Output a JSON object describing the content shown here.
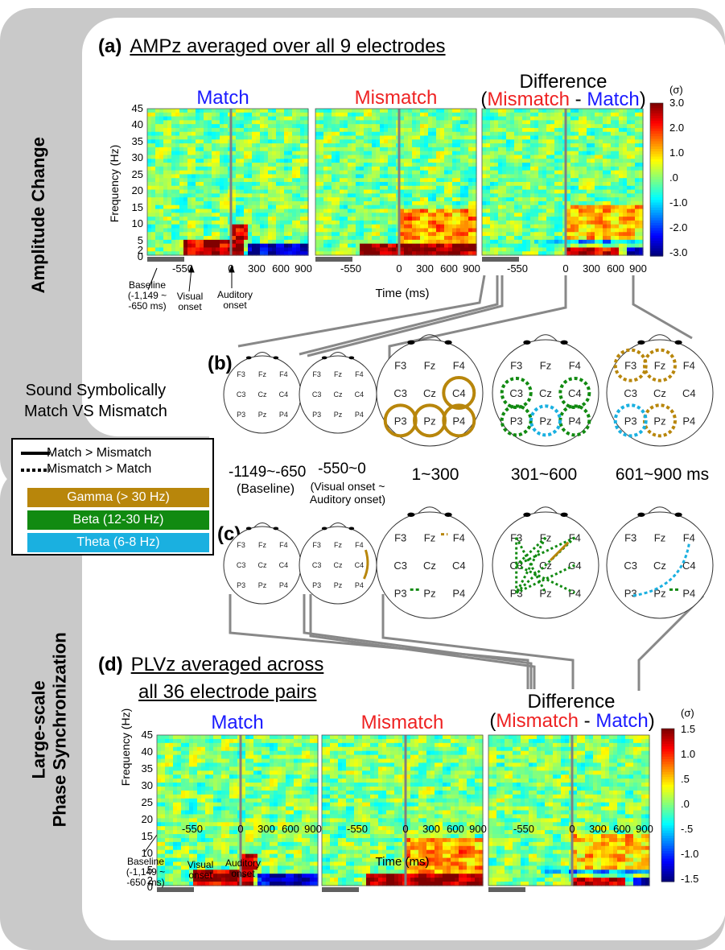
{
  "row_labels": {
    "amplitude": "Amplitude Change",
    "phase_line1": "Large-scale",
    "phase_line2": "Phase Synchronization"
  },
  "panel_a": {
    "letter": "(a)",
    "title": "AMPz averaged over all 9 electrodes"
  },
  "panel_b": {
    "letter": "(b)"
  },
  "panel_c": {
    "letter": "(c)"
  },
  "panel_d": {
    "letter": "(d)",
    "title_line1": "PLVz averaged across",
    "title_line2": "all 36 electrode pairs"
  },
  "plot_titles": {
    "match": "Match",
    "mismatch": "Mismatch",
    "difference": "Difference",
    "paren_open": "(",
    "diff_mismatch": "Mismatch",
    "dash": " - ",
    "diff_match": "Match",
    "paren_close": ")"
  },
  "axes": {
    "ylabel": "Frequency (Hz)",
    "xlabel": "Time (ms)",
    "y_ticks": [
      "45",
      "40",
      "35",
      "30",
      "25",
      "20",
      "15",
      "10",
      "5",
      "2",
      "0"
    ],
    "x_ticks": [
      "-550",
      "0",
      "300",
      "600",
      "900"
    ],
    "colorbar_unit": "(σ)",
    "colorbar_a": [
      "3.0",
      "2.0",
      "1.0",
      ".0",
      "-1.0",
      "-2.0",
      "-3.0"
    ],
    "colorbar_d": [
      "1.5",
      "1.0",
      ".5",
      ".0",
      "-.5",
      "-1.0",
      "-1.5"
    ]
  },
  "annotations": {
    "baseline": [
      "Baseline",
      "(-1,149 ~",
      "-650 ms)"
    ],
    "visual": [
      "Visual",
      "onset"
    ],
    "auditory": [
      "Auditory",
      "onset"
    ]
  },
  "side": {
    "line1": "Sound Symbolically",
    "line2": "Match VS Mismatch"
  },
  "legend": {
    "solid": "Match > Mismatch",
    "dotted": "Mismatch > Match",
    "bands": [
      {
        "label": "Gamma (> 30 Hz)",
        "color": "#b8860b"
      },
      {
        "label": "Beta (12-30 Hz)",
        "color": "#118a11"
      },
      {
        "label": "Theta (6-8 Hz)",
        "color": "#1ab0e0"
      }
    ]
  },
  "windows": {
    "w1": "-1149~-650",
    "w1_sub": "(Baseline)",
    "w2": "-550~0",
    "w2_sub1": "(Visual onset ~",
    "w2_sub2": "Auditory onset)",
    "w3": "1~300",
    "w4": "301~600",
    "w5": "601~900 ms"
  },
  "electrodes": [
    "F3",
    "Fz",
    "F4",
    "C3",
    "Cz",
    "C4",
    "P3",
    "Pz",
    "P4"
  ],
  "colors": {
    "gamma": "#b8860b",
    "beta": "#118a11",
    "theta": "#1ab0e0"
  }
}
